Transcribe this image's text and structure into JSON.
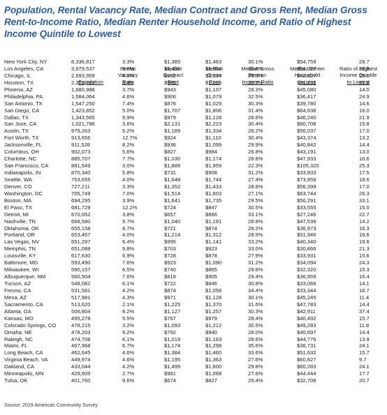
{
  "title": "Population, Rental Vacancy Rate, Median Contract and Gross Rent, Median Gross Rent-to-Income Ratio, Median Renter Household Income, and Ratio of Highest Income Quintile to Lowest",
  "headers": {
    "population": [
      "Population"
    ],
    "vacancy": [
      "Rental",
      "Vacancy",
      "Rate"
    ],
    "contract_rent": [
      "Median",
      "Contract",
      "Rent"
    ],
    "gross_rent": [
      "Median",
      "Gross",
      "Rent"
    ],
    "ratio": [
      "Median Gross",
      "Rent-to-",
      "Income Ratio"
    ],
    "income": [
      "Median Renter",
      "Household",
      "Income"
    ],
    "quintile": [
      "Ratio of Highest",
      "Income Quintile",
      "to Lowest"
    ]
  },
  "rows": [
    [
      "New York City, NY",
      "8,336,817",
      "3.3%",
      "$1,385",
      "$1,483",
      "30.1%",
      "$54,759",
      "28.7"
    ],
    [
      "Los Angeles, CA",
      "3,979,537",
      "4.6%",
      "$1,436",
      "$1,554",
      "33.8%",
      "$51,027",
      "22.9"
    ],
    [
      "Chicago, IL",
      "2,693,959",
      "4.5%",
      "$992",
      "$1,134",
      "28.5%",
      "$42,327",
      "25.1"
    ],
    [
      "Houston, TX",
      "2,316,797",
      "8.4%",
      "$946",
      "$1,095",
      "30.7%",
      "$41,231",
      "21.8"
    ],
    [
      "Phoenix, AZ",
      "1,680,988",
      "3.7%",
      "$943",
      "$1,107",
      "28.3%",
      "$45,080",
      "14.0"
    ],
    [
      "Philadelphia, PA",
      "1,584,064",
      "4.6%",
      "$906",
      "$1,079",
      "32.5%",
      "$36,417",
      "24.9"
    ],
    [
      "San Antonio, TX",
      "1,547,250",
      "7.4%",
      "$876",
      "$1,029",
      "30.3%",
      "$39,780",
      "14.6"
    ],
    [
      "San Diego, CA",
      "1,423,852",
      "5.0%",
      "$1,707",
      "$1,806",
      "31.4%",
      "$64,638",
      "16.0"
    ],
    [
      "Dallas, TX",
      "1,343,565",
      "9.9%",
      "$979",
      "$1,128",
      "28.6%",
      "$46,240",
      "21.9"
    ],
    [
      "San Jose, CA",
      "1,021,786",
      "3.6%",
      "$2,131",
      "$2,223",
      "30.4%",
      "$80,708",
      "15.8"
    ],
    [
      "Austin, TX",
      "979,263",
      "5.2%",
      "$1,189",
      "$1,334",
      "28.2%",
      "$56,037",
      "17.0"
    ],
    [
      "Fort Worth, TX",
      "913,656",
      "12.7%",
      "$924",
      "$1,110",
      "30.4%",
      "$43,374",
      "13.2"
    ],
    [
      "Jacksonville, FL",
      "911,528",
      "8.2%",
      "$936",
      "$1,099",
      "29.9%",
      "$40,842",
      "14.4"
    ],
    [
      "Columbus, OH",
      "902,073",
      "5.6%",
      "$827",
      "$984",
      "26.8%",
      "$43,191",
      "13.0"
    ],
    [
      "Charlotte, NC",
      "885,707",
      "7.7%",
      "$1,030",
      "$1,174",
      "28.8%",
      "$47,933",
      "16.6"
    ],
    [
      "San Francisco, CA",
      "881,549",
      "3.0%",
      "$1,889",
      "$1,959",
      "22.3%",
      "$105,320",
      "25.3"
    ],
    [
      "Indianapolis, IN",
      "870,340",
      "5.8%",
      "$731",
      "$908",
      "31.2%",
      "$33,833",
      "17.5"
    ],
    [
      "Seattle, WA",
      "753,655",
      "4.0%",
      "$1,648",
      "$1,744",
      "27.4%",
      "$73,959",
      "18.6"
    ],
    [
      "Denver, CO",
      "727,211",
      "3.3%",
      "$1,352",
      "$1,433",
      "28.6%",
      "$56,399",
      "17.0"
    ],
    [
      "Washington, DC",
      "705,749",
      "7.0%",
      "$1,514",
      "$1,603",
      "27.1%",
      "$63,744",
      "26.3"
    ],
    [
      "Boston, MA",
      "694,295",
      "3.9%",
      "$1,641",
      "$1,735",
      "29.5%",
      "$56,291",
      "33.1"
    ],
    [
      "El Paso, TX",
      "681,729",
      "12.2%",
      "$724",
      "$847",
      "30.5%",
      "$33,555",
      "15.0"
    ],
    [
      "Detroit, MI",
      "670,052",
      "3.8%",
      "$657",
      "$866",
      "33.1%",
      "$27,246",
      "22.7"
    ],
    [
      "Nashville, TN",
      "668,580",
      "9.7%",
      "$1,040",
      "$1,191",
      "28.8%",
      "$47,539",
      "14.2"
    ],
    [
      "Oklahoma, OK",
      "655,158",
      "8.7%",
      "$721",
      "$874",
      "28.2%",
      "$36,973",
      "16.3"
    ],
    [
      "Portland, OR",
      "653,467",
      "4.0%",
      "$1,214",
      "$1,312",
      "28.9%",
      "$51,946",
      "16.6"
    ],
    [
      "Las Vegas, NV",
      "651,297",
      "6.4%",
      "$995",
      "$1,141",
      "33.2%",
      "$40,340",
      "19.6"
    ],
    [
      "Memphis, TN",
      "651,088",
      "9.8%",
      "$703",
      "$923",
      "33.0%",
      "$30,866",
      "21.3"
    ],
    [
      "Louisville, KY",
      "617,630",
      "6.9%",
      "$728",
      "$878",
      "27.9%",
      "$33,931",
      "15.6"
    ],
    [
      "Baltimore, MD",
      "593,490",
      "7.6%",
      "$923",
      "$1,090",
      "31.2%",
      "$34,094",
      "24.3"
    ],
    [
      "Milwaukee, WI",
      "590,157",
      "6.5%",
      "$740",
      "$865",
      "29.8%",
      "$32,320",
      "15.3"
    ],
    [
      "Albuquerque, NM",
      "560,504",
      "7.6%",
      "$819",
      "$905",
      "29.4%",
      "$36,959",
      "16.4"
    ],
    [
      "Tucson, AZ",
      "548,082",
      "6.1%",
      "$722",
      "$846",
      "30.8%",
      "$33,066",
      "14.1"
    ],
    [
      "Fresno, CA",
      "531,581",
      "4.2%",
      "$874",
      "$1,058",
      "34.4%",
      "$33,344",
      "16.7"
    ],
    [
      "Mesa, AZ",
      "517,981",
      "4.3%",
      "$971",
      "$1,128",
      "30.1%",
      "$45,245",
      "11.4"
    ],
    [
      "Sacramento, CA",
      "513,620",
      "2.1%",
      "$1,225",
      "$1,370",
      "31.6%",
      "$47,783",
      "14.4"
    ],
    [
      "Atlanta, GA",
      "506,804",
      "8.2%",
      "$1,127",
      "$1,257",
      "30.3%",
      "$42,911",
      "37.4"
    ],
    [
      "Kansas, MO",
      "495,278",
      "5.5%",
      "$767",
      "$979",
      "28.4%",
      "$40,492",
      "15.7"
    ],
    [
      "Colorado Springs, CO",
      "478,215",
      "3.2%",
      "$1,093",
      "$1,212",
      "30.5%",
      "$49,283",
      "11.8"
    ],
    [
      "Omaha, NE",
      "478,203",
      "9.2%",
      "$792",
      "$940",
      "28.0%",
      "$40,697",
      "14.4"
    ],
    [
      "Raleigh, NC",
      "474,708",
      "6.1%",
      "$1,019",
      "$1,163",
      "28.6%",
      "$44,776",
      "13.9"
    ],
    [
      "Miami, FL",
      "467,968",
      "6.7%",
      "$1,174",
      "$1,298",
      "35.6%",
      "$36,731",
      "24.1"
    ],
    [
      "Long Beach, CA",
      "462,645",
      "4.6%",
      "$1,384",
      "$1,460",
      "33.6%",
      "$51,632",
      "15.7"
    ],
    [
      "Virginia Beach, VA",
      "449,974",
      "4.6%",
      "$1,195",
      "$1,363",
      "27.6%",
      "$60,827",
      "9.7"
    ],
    [
      "Oakland, CA",
      "433,044",
      "4.2%",
      "$1,499",
      "$1,600",
      "29.8%",
      "$60,283",
      "24.1"
    ],
    [
      "Minneapolis, MN",
      "429,605",
      "2.7%",
      "$981",
      "$1,068",
      "27.6%",
      "$44,444",
      "17.7"
    ],
    [
      "Tulsa, OK",
      "401,760",
      "9.6%",
      "$674",
      "$827",
      "29.4%",
      "$32,708",
      "20.7"
    ]
  ],
  "source": "Source: 2019 American Community Survey"
}
